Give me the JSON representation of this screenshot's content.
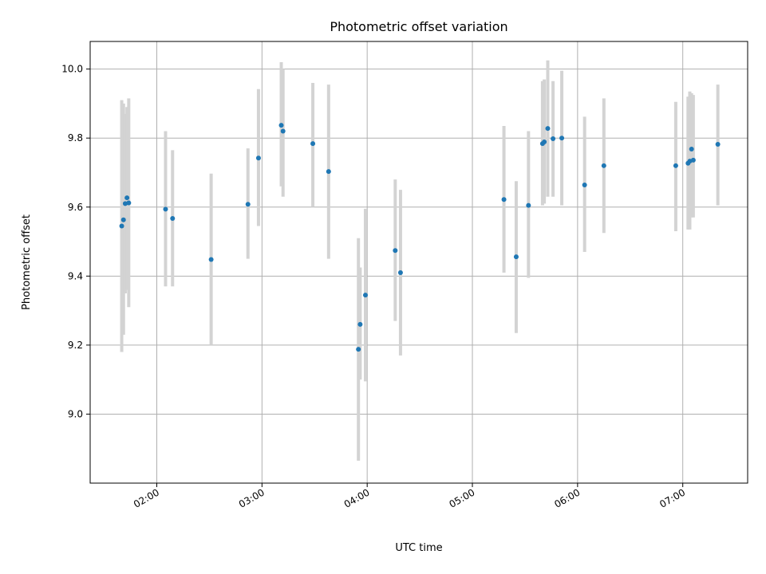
{
  "chart_data": {
    "type": "scatter",
    "title": "Photometric offset variation",
    "xlabel": "UTC time",
    "ylabel": "Photometric offset",
    "x_range": [
      "01:22",
      "07:37"
    ],
    "ylim": [
      8.8,
      10.08
    ],
    "x_ticks": [
      "02:00",
      "03:00",
      "04:00",
      "05:00",
      "06:00",
      "07:00"
    ],
    "y_ticks": [
      "9.0",
      "9.2",
      "9.4",
      "9.6",
      "9.8",
      "10.0"
    ],
    "grid": true,
    "marker_color": "#1f77b4",
    "errorbar_color": "#d3d3d3",
    "points": [
      {
        "t": "01:40",
        "y": 9.545,
        "lo": 9.18,
        "hi": 9.91
      },
      {
        "t": "01:41",
        "y": 9.563,
        "lo": 9.23,
        "hi": 9.9
      },
      {
        "t": "01:42",
        "y": 9.61,
        "lo": 9.35,
        "hi": 9.87
      },
      {
        "t": "01:43",
        "y": 9.627,
        "lo": 9.36,
        "hi": 9.89
      },
      {
        "t": "01:44",
        "y": 9.612,
        "lo": 9.31,
        "hi": 9.915
      },
      {
        "t": "02:05",
        "y": 9.594,
        "lo": 9.37,
        "hi": 9.82
      },
      {
        "t": "02:09",
        "y": 9.567,
        "lo": 9.37,
        "hi": 9.765
      },
      {
        "t": "02:31",
        "y": 9.448,
        "lo": 9.2,
        "hi": 9.697
      },
      {
        "t": "02:52",
        "y": 9.608,
        "lo": 9.45,
        "hi": 9.77
      },
      {
        "t": "02:58",
        "y": 9.742,
        "lo": 9.545,
        "hi": 9.942
      },
      {
        "t": "03:11",
        "y": 9.837,
        "lo": 9.66,
        "hi": 10.02
      },
      {
        "t": "03:12",
        "y": 9.82,
        "lo": 9.63,
        "hi": 10.0
      },
      {
        "t": "03:29",
        "y": 9.784,
        "lo": 9.6,
        "hi": 9.96
      },
      {
        "t": "03:38",
        "y": 9.703,
        "lo": 9.45,
        "hi": 9.955
      },
      {
        "t": "03:55",
        "y": 9.188,
        "lo": 8.865,
        "hi": 9.51
      },
      {
        "t": "03:56",
        "y": 9.26,
        "lo": 9.1,
        "hi": 9.425
      },
      {
        "t": "03:59",
        "y": 9.345,
        "lo": 9.095,
        "hi": 9.595
      },
      {
        "t": "04:16",
        "y": 9.474,
        "lo": 9.27,
        "hi": 9.68
      },
      {
        "t": "04:19",
        "y": 9.41,
        "lo": 9.17,
        "hi": 9.65
      },
      {
        "t": "05:18",
        "y": 9.622,
        "lo": 9.41,
        "hi": 9.835
      },
      {
        "t": "05:25",
        "y": 9.456,
        "lo": 9.235,
        "hi": 9.675
      },
      {
        "t": "05:32",
        "y": 9.605,
        "lo": 9.395,
        "hi": 9.82
      },
      {
        "t": "05:40",
        "y": 9.784,
        "lo": 9.605,
        "hi": 9.965
      },
      {
        "t": "05:41",
        "y": 9.789,
        "lo": 9.61,
        "hi": 9.97
      },
      {
        "t": "05:43",
        "y": 9.828,
        "lo": 9.63,
        "hi": 10.025
      },
      {
        "t": "05:46",
        "y": 9.798,
        "lo": 9.63,
        "hi": 9.965
      },
      {
        "t": "05:51",
        "y": 9.8,
        "lo": 9.605,
        "hi": 9.995
      },
      {
        "t": "06:04",
        "y": 9.664,
        "lo": 9.47,
        "hi": 9.862
      },
      {
        "t": "06:15",
        "y": 9.72,
        "lo": 9.525,
        "hi": 9.915
      },
      {
        "t": "06:56",
        "y": 9.72,
        "lo": 9.53,
        "hi": 9.905
      },
      {
        "t": "07:03",
        "y": 9.727,
        "lo": 9.535,
        "hi": 9.92
      },
      {
        "t": "07:04",
        "y": 9.733,
        "lo": 9.535,
        "hi": 9.935
      },
      {
        "t": "07:05",
        "y": 9.768,
        "lo": 9.57,
        "hi": 9.93
      },
      {
        "t": "07:06",
        "y": 9.736,
        "lo": 9.57,
        "hi": 9.925
      },
      {
        "t": "07:20",
        "y": 9.782,
        "lo": 9.605,
        "hi": 9.955
      }
    ]
  }
}
